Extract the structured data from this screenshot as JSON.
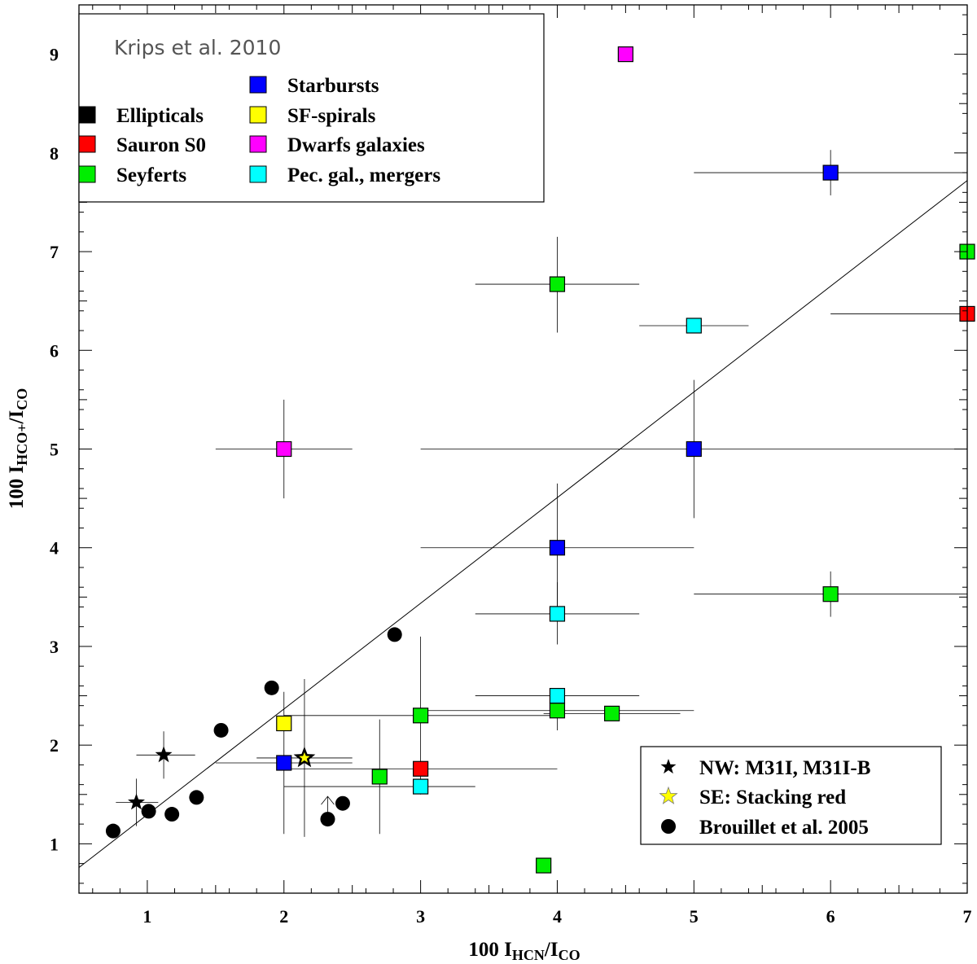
{
  "chart_data": {
    "type": "scatter",
    "title": "",
    "xlabel": {
      "main": "100 I",
      "sub": "HCN",
      "rest": "/I",
      "sub2": "CO"
    },
    "ylabel": {
      "main": "100 I",
      "sub": "HCO+",
      "rest": "/I",
      "sub2": "CO"
    },
    "xlim": [
      0.5,
      7
    ],
    "ylim": [
      0.5,
      9.5
    ],
    "xticks": [
      1,
      2,
      3,
      4,
      5,
      6,
      7
    ],
    "yticks": [
      1,
      2,
      3,
      4,
      5,
      6,
      7,
      8,
      9
    ],
    "grid": false,
    "fit_line": {
      "x": [
        0.5,
        7
      ],
      "y": [
        0.76,
        7.72
      ]
    },
    "legend_top": {
      "title": "Krips et al. 2010",
      "entries": [
        {
          "label": "Ellipticals",
          "color": "#000000"
        },
        {
          "label": "Sauron S0",
          "color": "#ff0000"
        },
        {
          "label": "Seyferts",
          "color": "#00ee00"
        },
        {
          "label": "Starbursts",
          "color": "#0000ff"
        },
        {
          "label": "SF-spirals",
          "color": "#ffff00"
        },
        {
          "label": "Dwarfs galaxies",
          "color": "#ff00ff"
        },
        {
          "label": "Pec. gal., mergers",
          "color": "#00ffff"
        }
      ]
    },
    "legend_bottom": {
      "entries": [
        {
          "label": "NW: M31I, M31I-B",
          "marker": "star",
          "color": "#000000"
        },
        {
          "label": "SE: Stacking red",
          "marker": "star",
          "color": "#ffff00"
        },
        {
          "label": "Brouillet et al. 2005",
          "marker": "circle",
          "color": "#000000"
        }
      ]
    },
    "squares": [
      {
        "x": 6.0,
        "y": 7.8,
        "color": "#0000ff",
        "xerr": [
          5.0,
          7.0
        ],
        "yerr": [
          7.57,
          8.03
        ]
      },
      {
        "x": 4.0,
        "y": 6.67,
        "color": "#00ee00",
        "xerr": [
          3.4,
          4.6
        ],
        "yerr": [
          6.18,
          7.15
        ]
      },
      {
        "x": 7.0,
        "y": 7.0,
        "color": "#00ee00"
      },
      {
        "x": 7.0,
        "y": 6.37,
        "color": "#ff0000",
        "xerr": [
          6.0,
          7.0
        ]
      },
      {
        "x": 5.0,
        "y": 6.25,
        "color": "#00ffff",
        "xerr": [
          4.6,
          5.4
        ]
      },
      {
        "x": 4.5,
        "y": 9.0,
        "color": "#ff00ff"
      },
      {
        "x": 2.0,
        "y": 5.0,
        "color": "#ff00ff",
        "xerr": [
          1.5,
          2.5
        ],
        "yerr": [
          4.5,
          5.5
        ]
      },
      {
        "x": 5.0,
        "y": 5.0,
        "color": "#0000ff",
        "xerr": [
          3.0,
          7.0
        ],
        "yerr": [
          4.3,
          5.7
        ]
      },
      {
        "x": 4.0,
        "y": 4.0,
        "color": "#0000ff",
        "xerr": [
          3.0,
          5.0
        ],
        "yerr": [
          3.35,
          4.65
        ]
      },
      {
        "x": 6.0,
        "y": 3.53,
        "color": "#00ee00",
        "xerr": [
          5.0,
          7.0
        ],
        "yerr": [
          3.3,
          3.76
        ]
      },
      {
        "x": 4.0,
        "y": 3.33,
        "color": "#00ffff",
        "xerr": [
          3.4,
          4.6
        ],
        "yerr": [
          3.02,
          3.65
        ]
      },
      {
        "x": 3.0,
        "y": 2.3,
        "color": "#00ee00",
        "xerr": [
          2.0,
          4.0
        ],
        "yerr": [
          1.5,
          3.1
        ]
      },
      {
        "x": 4.0,
        "y": 2.5,
        "color": "#00ffff",
        "xerr": [
          3.4,
          4.6
        ]
      },
      {
        "x": 4.0,
        "y": 2.35,
        "color": "#00ee00",
        "xerr": [
          3.0,
          5.0
        ],
        "yerr": [
          2.15,
          2.55
        ]
      },
      {
        "x": 4.4,
        "y": 2.32,
        "color": "#00ee00",
        "xerr": [
          3.9,
          4.9
        ]
      },
      {
        "x": 2.0,
        "y": 2.22,
        "color": "#ffff00"
      },
      {
        "x": 2.0,
        "y": 1.82,
        "color": "#0000ff",
        "xerr": [
          1.5,
          2.5
        ],
        "yerr": [
          1.1,
          2.54
        ]
      },
      {
        "x": 3.0,
        "y": 1.76,
        "color": "#ff0000",
        "xerr": [
          2.0,
          4.0
        ]
      },
      {
        "x": 2.7,
        "y": 1.68,
        "color": "#00ee00",
        "yerr": [
          1.1,
          2.26
        ]
      },
      {
        "x": 3.0,
        "y": 1.58,
        "color": "#00ffff",
        "xerr": [
          2.0,
          3.4
        ]
      },
      {
        "x": 3.9,
        "y": 0.78,
        "color": "#00ee00"
      }
    ],
    "stars_black": [
      {
        "x": 0.92,
        "y": 1.42,
        "xerr": [
          0.77,
          1.08
        ],
        "yerr": [
          1.18,
          1.66
        ]
      },
      {
        "x": 1.12,
        "y": 1.9,
        "xerr": [
          0.92,
          1.35
        ],
        "yerr": [
          1.66,
          2.14
        ]
      }
    ],
    "stars_yellow": [
      {
        "x": 2.15,
        "y": 1.87,
        "xerr": [
          1.8,
          2.5
        ],
        "yerr": [
          1.07,
          2.67
        ]
      }
    ],
    "circles": [
      {
        "x": 0.75,
        "y": 1.13
      },
      {
        "x": 1.01,
        "y": 1.33
      },
      {
        "x": 1.18,
        "y": 1.3
      },
      {
        "x": 1.36,
        "y": 1.47
      },
      {
        "x": 1.54,
        "y": 2.15
      },
      {
        "x": 1.91,
        "y": 2.58
      },
      {
        "x": 2.32,
        "y": 1.25,
        "upper_arrow": true
      },
      {
        "x": 2.43,
        "y": 1.41
      },
      {
        "x": 2.81,
        "y": 3.12
      }
    ]
  }
}
